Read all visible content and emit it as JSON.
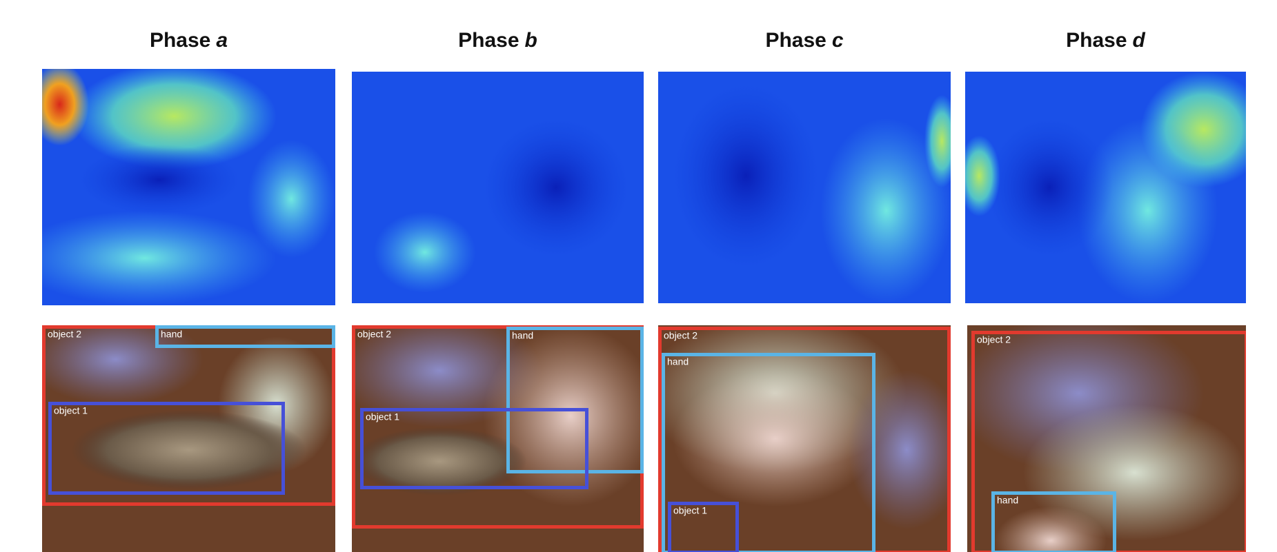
{
  "panels": [
    {
      "title": {
        "prefix": "Phase",
        "letter": "a"
      },
      "boxes": [
        {
          "label": "object 2"
        },
        {
          "label": "hand"
        },
        {
          "label": "object 1"
        }
      ]
    },
    {
      "title": {
        "prefix": "Phase",
        "letter": "b"
      },
      "boxes": [
        {
          "label": "object 2"
        },
        {
          "label": "hand"
        },
        {
          "label": "object 1"
        }
      ]
    },
    {
      "title": {
        "prefix": "Phase",
        "letter": "c"
      },
      "boxes": [
        {
          "label": "object 2"
        },
        {
          "label": "hand"
        },
        {
          "label": "object 1"
        }
      ]
    },
    {
      "title": {
        "prefix": "Phase",
        "letter": "d"
      },
      "boxes": [
        {
          "label": "object 2"
        },
        {
          "label": "hand"
        }
      ]
    }
  ]
}
